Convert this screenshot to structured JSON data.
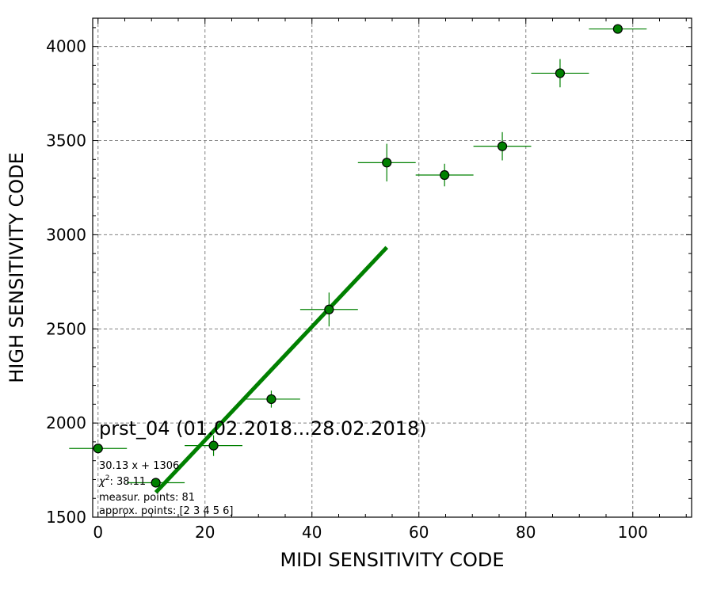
{
  "chart_data": {
    "type": "scatter",
    "title": "prst_04 (01.02.2018...28.02.2018)",
    "xlabel": "MIDI SENSITIVITY CODE",
    "ylabel": "HIGH SENSITIVITY CODE",
    "xlim": [
      -1,
      111
    ],
    "ylim": [
      1500,
      4150
    ],
    "xticks": [
      0,
      20,
      40,
      60,
      80,
      100
    ],
    "yticks": [
      1500,
      2000,
      2500,
      3000,
      3500,
      4000
    ],
    "x_minor_step": 5,
    "y_minor_step": 100,
    "grid": true,
    "colors": {
      "points": "#008000",
      "point_edge": "#000000",
      "errorbars": "#008000",
      "fit_line": "#008000"
    },
    "series": [
      {
        "points": [
          {
            "x": 0,
            "y": 1865,
            "xerr": 5.4,
            "yerr": 0
          },
          {
            "x": 10.8,
            "y": 1683,
            "xerr": 5.4,
            "yerr": 0
          },
          {
            "x": 21.6,
            "y": 1880,
            "xerr": 5.4,
            "yerr": 55
          },
          {
            "x": 32.4,
            "y": 2127,
            "xerr": 5.4,
            "yerr": 45
          },
          {
            "x": 43.2,
            "y": 2603,
            "xerr": 5.4,
            "yerr": 90
          },
          {
            "x": 54.0,
            "y": 3383,
            "xerr": 5.4,
            "yerr": 100
          },
          {
            "x": 64.8,
            "y": 3317,
            "xerr": 5.4,
            "yerr": 60
          },
          {
            "x": 75.6,
            "y": 3470,
            "xerr": 5.4,
            "yerr": 75
          },
          {
            "x": 86.4,
            "y": 3858,
            "xerr": 5.4,
            "yerr": 75
          },
          {
            "x": 97.2,
            "y": 4093,
            "xerr": 5.4,
            "yerr": 0
          }
        ]
      }
    ],
    "fit": {
      "slope": 30.13,
      "intercept": 1306,
      "x_from": 10.8,
      "x_to": 54.0
    },
    "annotations": {
      "equation": "30.13 x + 1306",
      "chi2_symbol": "χ",
      "chi2_power": "2",
      "chi2_value": ": 38.11",
      "measur_points": "measur. points: 81",
      "approx_points": "approx. points: [2 3 4 5 6]"
    }
  }
}
